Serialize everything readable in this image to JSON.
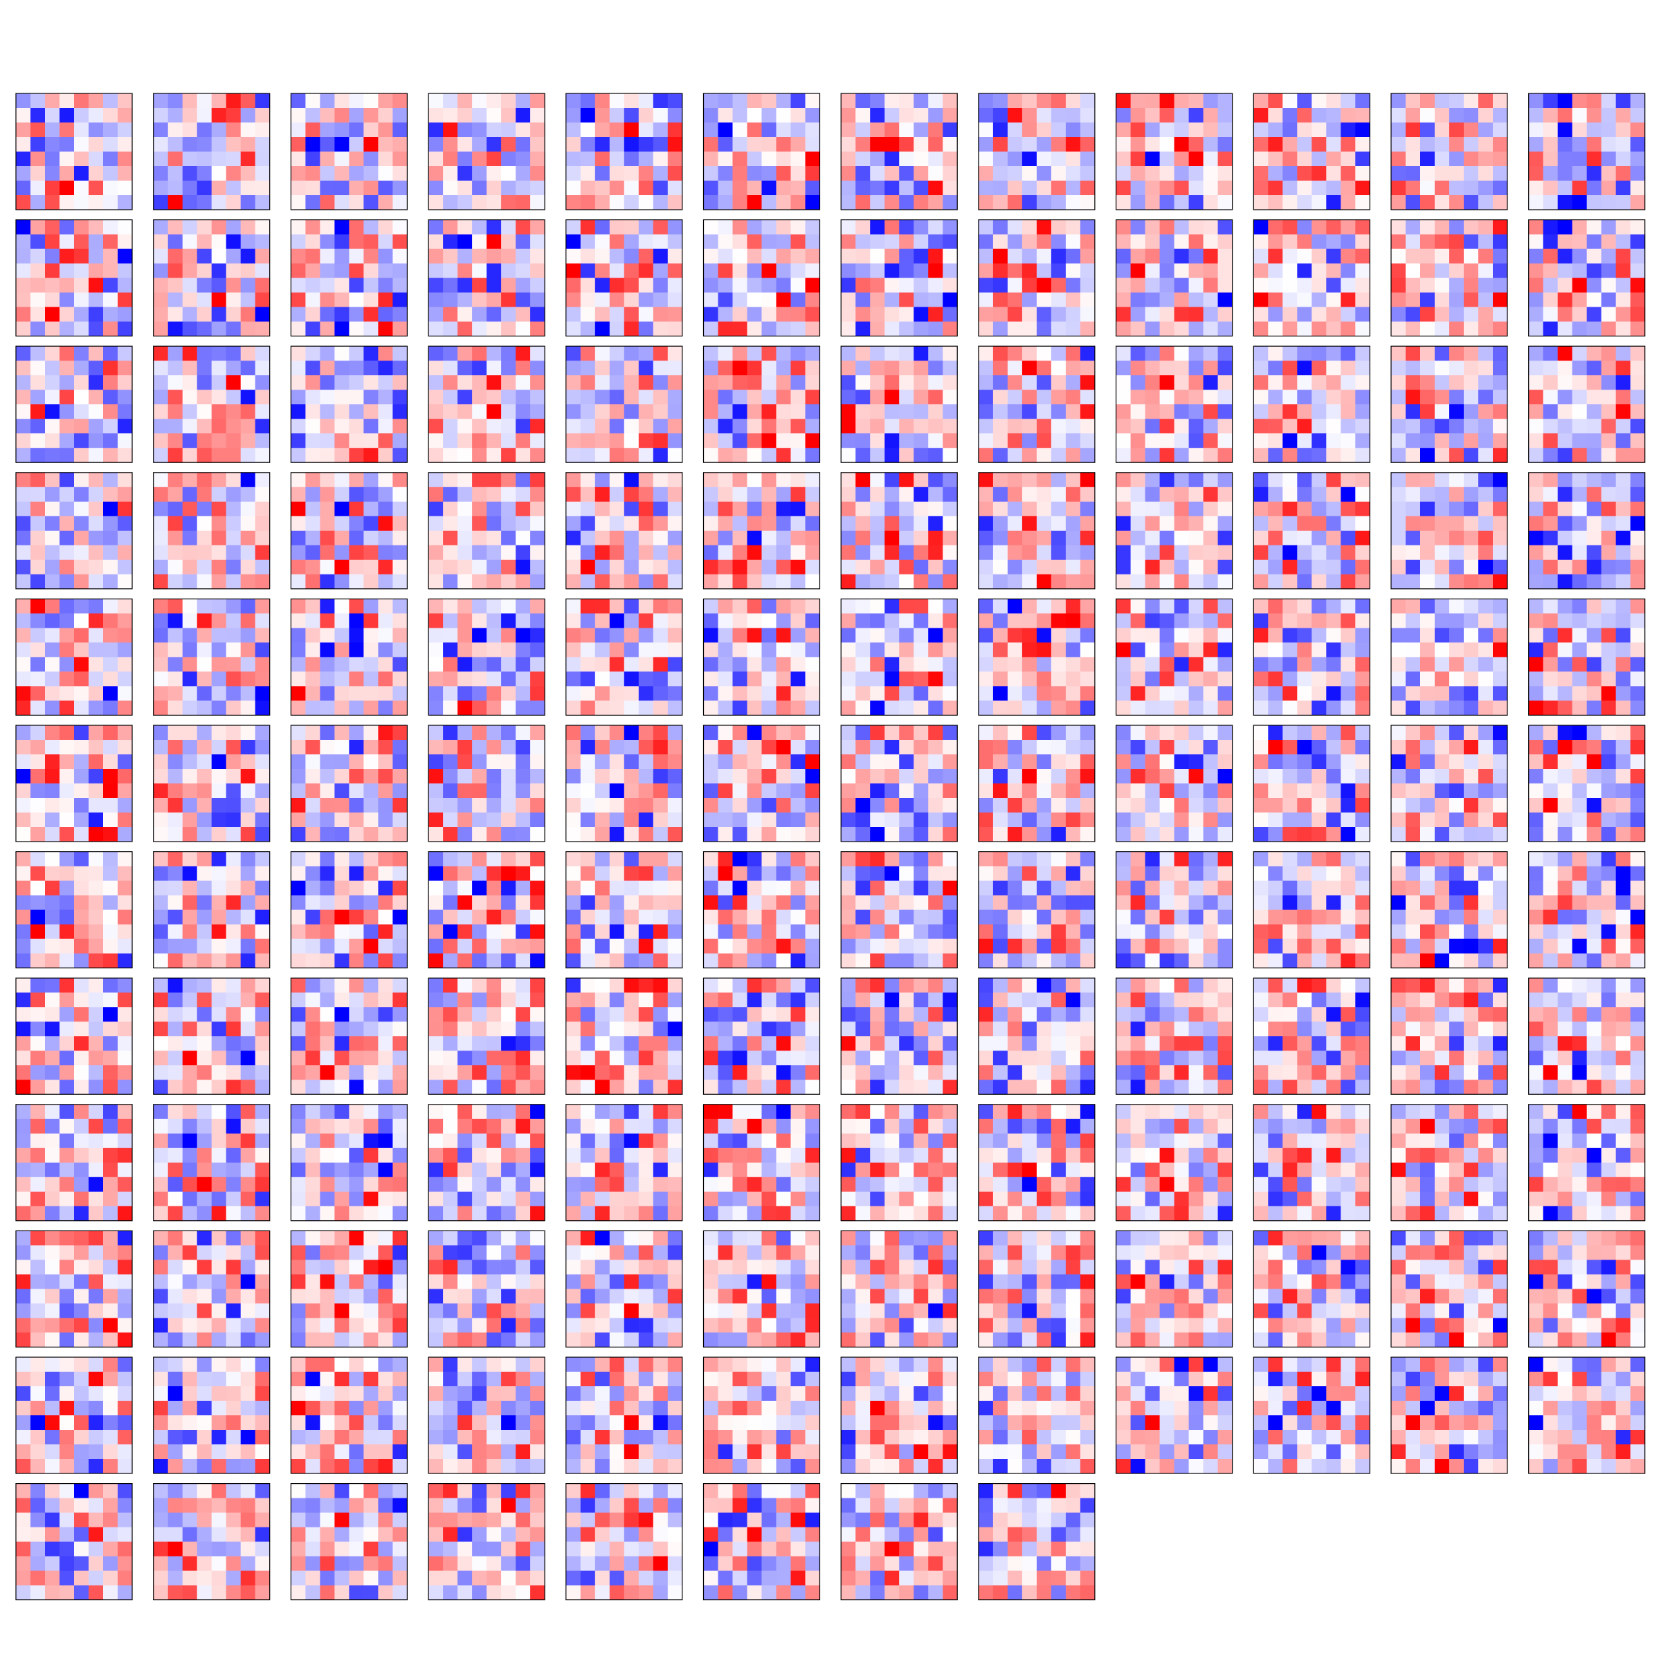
{
  "chart_data": {
    "type": "heatmap",
    "title": "",
    "xlabel": "",
    "ylabel": "",
    "n_panels": 140,
    "grid_columns": 12,
    "panel_cells": [
      8,
      8
    ],
    "colormap": "bwr",
    "value_range": [
      -1,
      1
    ],
    "ticks": "none",
    "colorbar": false,
    "colors": {
      "negative": "#0000ff",
      "zero": "#ffffff",
      "positive": "#ff0000",
      "frame": "#000000",
      "background": "#ffffff"
    },
    "values_note_seed": 20240611
  }
}
